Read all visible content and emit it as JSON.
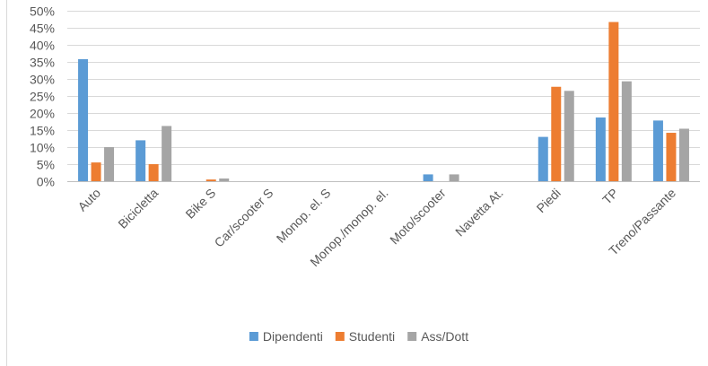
{
  "chart_data": {
    "type": "bar",
    "categories": [
      "Auto",
      "Bicicletta",
      "Bike S",
      "Car/scooter S",
      "Monop. el. S",
      "Monop./monop. el.",
      "Moto/scooter",
      "Navetta At.",
      "Piedi",
      "TP",
      "Treno/Passante"
    ],
    "series": [
      {
        "name": "Dipendenti",
        "color": "#5b9bd5",
        "values": [
          0.358,
          0.12,
          0.0,
          0.0,
          0.0,
          0.0,
          0.02,
          0.0,
          0.13,
          0.187,
          0.178
        ]
      },
      {
        "name": "Studenti",
        "color": "#ed7d31",
        "values": [
          0.055,
          0.05,
          0.005,
          0.0,
          0.0,
          0.0,
          0.0,
          0.0,
          0.277,
          0.467,
          0.142
        ]
      },
      {
        "name": "Ass/Dott",
        "color": "#a5a5a5",
        "values": [
          0.1,
          0.162,
          0.008,
          0.0,
          0.0,
          0.0,
          0.02,
          0.0,
          0.265,
          0.293,
          0.154
        ]
      }
    ],
    "ylim": [
      0,
      0.5
    ],
    "yticks": [
      0,
      0.05,
      0.1,
      0.15,
      0.2,
      0.25,
      0.3,
      0.35,
      0.4,
      0.45,
      0.5
    ],
    "ytick_labels": [
      "0%",
      "5%",
      "10%",
      "15%",
      "20%",
      "25%",
      "30%",
      "35%",
      "40%",
      "45%",
      "50%"
    ],
    "grid": true,
    "legend_position": "bottom",
    "title": "",
    "xlabel": "",
    "ylabel": ""
  }
}
